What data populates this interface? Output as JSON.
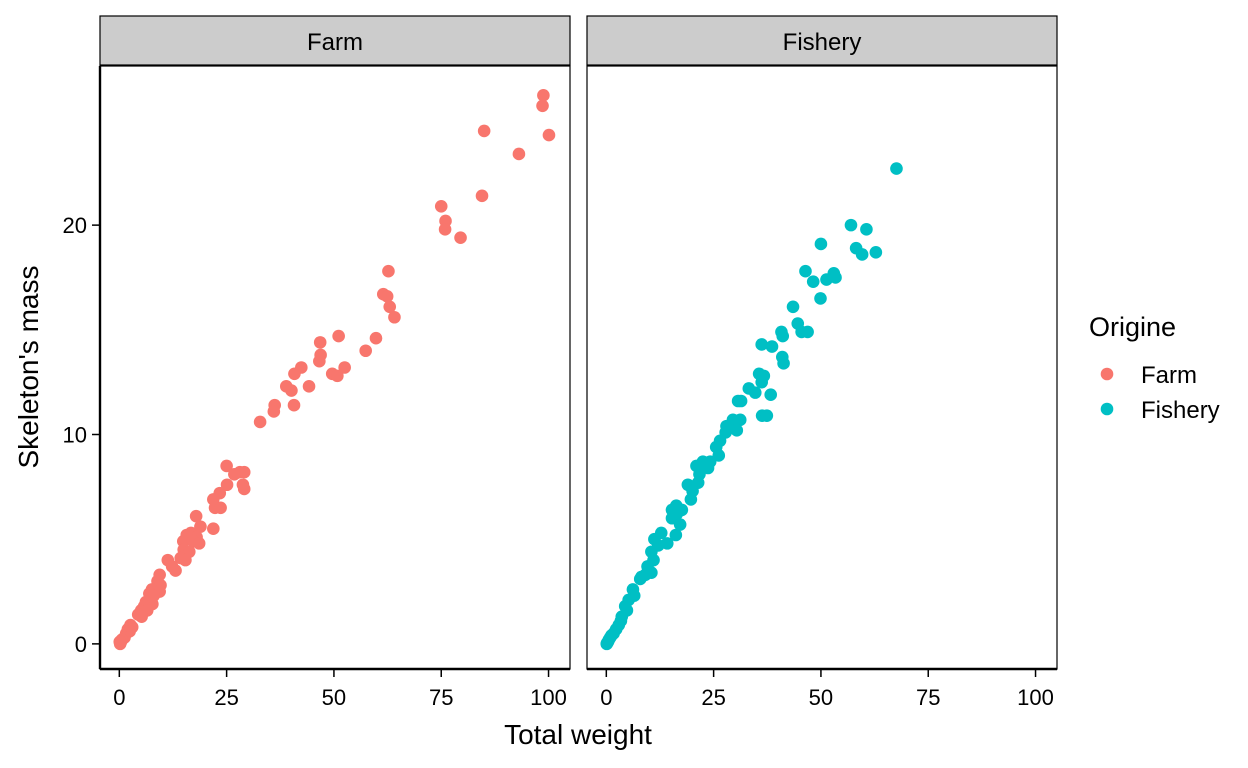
{
  "chart_data": {
    "type": "scatter",
    "facet_by": "Origine",
    "panels": [
      {
        "name": "Farm",
        "color": "#F8766D"
      },
      {
        "name": "Fishery",
        "color": "#00BFC4"
      }
    ],
    "xlabel": "Total weight",
    "ylabel": "Skeleton's mass",
    "xlim": [
      -4.5,
      105
    ],
    "ylim": [
      -1.2,
      27.6
    ],
    "xticks": [
      0,
      25,
      50,
      75,
      100
    ],
    "yticks": [
      0,
      10,
      20
    ],
    "grid": false,
    "legend": {
      "title": "Origine",
      "position": "right",
      "entries": [
        {
          "label": "Farm",
          "color": "#F8766D"
        },
        {
          "label": "Fishery",
          "color": "#00BFC4"
        }
      ]
    },
    "series": [
      {
        "name": "Farm",
        "color": "#F8766D",
        "points": [
          [
            98.8,
            26.2
          ],
          [
            98.6,
            25.7
          ],
          [
            100.1,
            24.3
          ],
          [
            85.0,
            24.5
          ],
          [
            93.1,
            23.4
          ],
          [
            84.5,
            21.4
          ],
          [
            75.0,
            20.9
          ],
          [
            76.0,
            20.2
          ],
          [
            75.9,
            19.8
          ],
          [
            79.5,
            19.4
          ],
          [
            62.7,
            17.8
          ],
          [
            61.5,
            16.7
          ],
          [
            62.4,
            16.6
          ],
          [
            63.0,
            16.1
          ],
          [
            64.1,
            15.6
          ],
          [
            46.8,
            14.4
          ],
          [
            51.1,
            14.7
          ],
          [
            59.8,
            14.6
          ],
          [
            57.4,
            14.0
          ],
          [
            46.9,
            13.8
          ],
          [
            46.6,
            13.5
          ],
          [
            42.4,
            13.2
          ],
          [
            40.8,
            12.9
          ],
          [
            52.5,
            13.2
          ],
          [
            49.6,
            12.9
          ],
          [
            50.8,
            12.8
          ],
          [
            38.9,
            12.3
          ],
          [
            44.2,
            12.3
          ],
          [
            40.1,
            12.1
          ],
          [
            40.7,
            11.4
          ],
          [
            36.2,
            11.4
          ],
          [
            36.0,
            11.1
          ],
          [
            32.8,
            10.6
          ],
          [
            25.0,
            8.5
          ],
          [
            28.1,
            8.2
          ],
          [
            29.1,
            8.2
          ],
          [
            26.8,
            8.1
          ],
          [
            28.8,
            7.6
          ],
          [
            25.1,
            7.6
          ],
          [
            29.1,
            7.4
          ],
          [
            23.4,
            7.2
          ],
          [
            21.9,
            6.9
          ],
          [
            22.3,
            6.5
          ],
          [
            23.6,
            6.5
          ],
          [
            21.9,
            5.5
          ],
          [
            17.9,
            6.1
          ],
          [
            18.9,
            5.6
          ],
          [
            16.7,
            5.3
          ],
          [
            18.0,
            5.1
          ],
          [
            15.7,
            5.2
          ],
          [
            14.9,
            4.9
          ],
          [
            17.2,
            4.9
          ],
          [
            18.6,
            4.8
          ],
          [
            15.0,
            4.5
          ],
          [
            16.3,
            4.4
          ],
          [
            14.3,
            4.1
          ],
          [
            15.4,
            4.0
          ],
          [
            11.3,
            4.0
          ],
          [
            12.3,
            3.7
          ],
          [
            13.1,
            3.5
          ],
          [
            9.4,
            3.3
          ],
          [
            8.9,
            3.0
          ],
          [
            9.6,
            2.8
          ],
          [
            7.6,
            2.6
          ],
          [
            9.4,
            2.5
          ],
          [
            7.0,
            2.4
          ],
          [
            8.0,
            2.3
          ],
          [
            6.2,
            2.0
          ],
          [
            7.7,
            1.9
          ],
          [
            5.8,
            1.8
          ],
          [
            5.1,
            1.6
          ],
          [
            6.5,
            1.6
          ],
          [
            4.4,
            1.4
          ],
          [
            5.2,
            1.3
          ],
          [
            2.6,
            0.9
          ],
          [
            3.0,
            0.8
          ],
          [
            2.0,
            0.7
          ],
          [
            2.4,
            0.6
          ],
          [
            1.6,
            0.5
          ],
          [
            1.2,
            0.3
          ],
          [
            0.6,
            0.2
          ],
          [
            0.4,
            0.1
          ],
          [
            0.2,
            0.0
          ],
          [
            0.1,
            0.1
          ]
        ]
      },
      {
        "name": "Fishery",
        "color": "#00BFC4",
        "points": [
          [
            67.6,
            22.7
          ],
          [
            57.0,
            20.0
          ],
          [
            60.6,
            19.8
          ],
          [
            50.0,
            19.1
          ],
          [
            58.2,
            18.9
          ],
          [
            59.6,
            18.6
          ],
          [
            62.8,
            18.7
          ],
          [
            46.4,
            17.8
          ],
          [
            53.0,
            17.7
          ],
          [
            53.4,
            17.5
          ],
          [
            51.3,
            17.4
          ],
          [
            48.2,
            17.3
          ],
          [
            49.9,
            16.5
          ],
          [
            43.5,
            16.1
          ],
          [
            44.6,
            15.3
          ],
          [
            45.5,
            14.9
          ],
          [
            46.9,
            14.9
          ],
          [
            40.8,
            14.9
          ],
          [
            41.1,
            14.7
          ],
          [
            36.2,
            14.3
          ],
          [
            38.6,
            14.2
          ],
          [
            41.0,
            13.7
          ],
          [
            41.3,
            13.4
          ],
          [
            35.6,
            12.9
          ],
          [
            36.7,
            12.8
          ],
          [
            36.2,
            12.5
          ],
          [
            33.2,
            12.2
          ],
          [
            34.7,
            12.0
          ],
          [
            38.3,
            11.9
          ],
          [
            30.7,
            11.6
          ],
          [
            31.4,
            11.6
          ],
          [
            36.3,
            10.9
          ],
          [
            37.4,
            10.9
          ],
          [
            29.5,
            10.7
          ],
          [
            31.2,
            10.7
          ],
          [
            28.0,
            10.4
          ],
          [
            30.4,
            10.2
          ],
          [
            27.8,
            10.1
          ],
          [
            26.5,
            9.7
          ],
          [
            25.6,
            9.4
          ],
          [
            26.2,
            9.0
          ],
          [
            24.2,
            8.7
          ],
          [
            22.5,
            8.7
          ],
          [
            21.0,
            8.5
          ],
          [
            23.7,
            8.4
          ],
          [
            21.7,
            8.1
          ],
          [
            21.4,
            7.7
          ],
          [
            19.0,
            7.6
          ],
          [
            20.1,
            7.3
          ],
          [
            19.7,
            6.9
          ],
          [
            16.3,
            6.6
          ],
          [
            15.3,
            6.4
          ],
          [
            17.6,
            6.4
          ],
          [
            16.4,
            6.2
          ],
          [
            15.3,
            6.0
          ],
          [
            17.2,
            5.7
          ],
          [
            16.2,
            5.2
          ],
          [
            12.8,
            5.3
          ],
          [
            11.2,
            5.0
          ],
          [
            14.2,
            4.8
          ],
          [
            12.1,
            4.7
          ],
          [
            10.5,
            4.4
          ],
          [
            11.0,
            4.0
          ],
          [
            9.6,
            3.7
          ],
          [
            10.5,
            3.4
          ],
          [
            9.1,
            3.3
          ],
          [
            8.2,
            3.2
          ],
          [
            7.9,
            3.1
          ],
          [
            6.2,
            2.6
          ],
          [
            6.5,
            2.3
          ],
          [
            5.2,
            2.1
          ],
          [
            4.4,
            1.8
          ],
          [
            4.8,
            1.6
          ],
          [
            3.6,
            1.3
          ],
          [
            3.4,
            1.1
          ],
          [
            2.9,
            0.9
          ],
          [
            2.3,
            0.7
          ],
          [
            1.7,
            0.5
          ],
          [
            1.2,
            0.4
          ],
          [
            0.9,
            0.3
          ],
          [
            0.6,
            0.2
          ],
          [
            0.4,
            0.1
          ],
          [
            0.2,
            0.05
          ],
          [
            0.1,
            0.0
          ]
        ]
      }
    ]
  }
}
